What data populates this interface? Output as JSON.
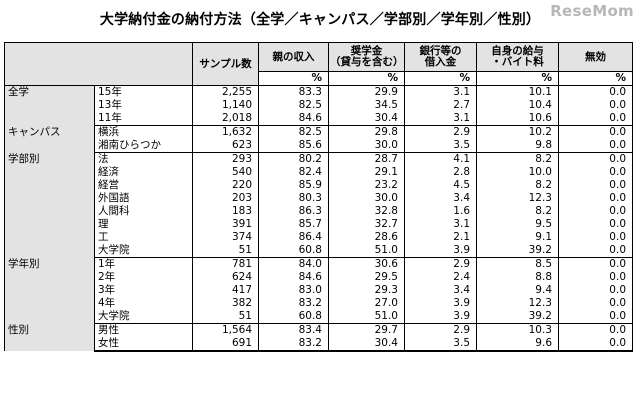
{
  "title": "大学納付金の納付方法（全学／キャンパス／学部別／学年別／性別）",
  "logo": "ReseMom",
  "headers": {
    "sample": "サンプル数",
    "parents": "親の収入",
    "scholarship_l1": "奨学金",
    "scholarship_l2": "（貸与を含む）",
    "bank_l1": "銀行等の",
    "bank_l2": "借入金",
    "own_l1": "自身の給与",
    "own_l2": "・バイト料",
    "none": "無効",
    "unit": "%"
  },
  "groups": [
    {
      "label": "全学",
      "rows": [
        {
          "sub": "15年",
          "n": "2,255",
          "v": [
            "83.3",
            "29.9",
            "3.1",
            "10.1",
            "0.0"
          ]
        },
        {
          "sub": "13年",
          "n": "1,140",
          "v": [
            "82.5",
            "34.5",
            "2.7",
            "10.4",
            "0.0"
          ]
        },
        {
          "sub": "11年",
          "n": "2,018",
          "v": [
            "84.6",
            "30.4",
            "3.1",
            "10.6",
            "0.0"
          ]
        }
      ]
    },
    {
      "label": "キャンパス",
      "rows": [
        {
          "sub": "横浜",
          "n": "1,632",
          "v": [
            "82.5",
            "29.8",
            "2.9",
            "10.2",
            "0.0"
          ]
        },
        {
          "sub": "湘南ひらつか",
          "n": "623",
          "v": [
            "85.6",
            "30.0",
            "3.5",
            "9.8",
            "0.0"
          ]
        }
      ]
    },
    {
      "label": "学部別",
      "rows": [
        {
          "sub": "法",
          "n": "293",
          "v": [
            "80.2",
            "28.7",
            "4.1",
            "8.2",
            "0.0"
          ]
        },
        {
          "sub": "経済",
          "n": "540",
          "v": [
            "82.4",
            "29.1",
            "2.8",
            "10.0",
            "0.0"
          ]
        },
        {
          "sub": "経営",
          "n": "220",
          "v": [
            "85.9",
            "23.2",
            "4.5",
            "8.2",
            "0.0"
          ]
        },
        {
          "sub": "外国語",
          "n": "203",
          "v": [
            "80.3",
            "30.0",
            "3.4",
            "12.3",
            "0.0"
          ]
        },
        {
          "sub": "人間科",
          "n": "183",
          "v": [
            "86.3",
            "32.8",
            "1.6",
            "8.2",
            "0.0"
          ]
        },
        {
          "sub": "理",
          "n": "391",
          "v": [
            "85.7",
            "32.7",
            "3.1",
            "9.5",
            "0.0"
          ]
        },
        {
          "sub": "工",
          "n": "374",
          "v": [
            "86.4",
            "28.6",
            "2.1",
            "9.1",
            "0.0"
          ]
        },
        {
          "sub": "大学院",
          "n": "51",
          "v": [
            "60.8",
            "51.0",
            "3.9",
            "39.2",
            "0.0"
          ]
        }
      ]
    },
    {
      "label": "学年別",
      "rows": [
        {
          "sub": "1年",
          "n": "781",
          "v": [
            "84.0",
            "30.6",
            "2.9",
            "8.5",
            "0.0"
          ]
        },
        {
          "sub": "2年",
          "n": "624",
          "v": [
            "84.6",
            "29.5",
            "2.4",
            "8.8",
            "0.0"
          ]
        },
        {
          "sub": "3年",
          "n": "417",
          "v": [
            "83.0",
            "29.3",
            "3.4",
            "9.4",
            "0.0"
          ]
        },
        {
          "sub": "4年",
          "n": "382",
          "v": [
            "83.2",
            "27.0",
            "3.9",
            "12.3",
            "0.0"
          ]
        },
        {
          "sub": "大学院",
          "n": "51",
          "v": [
            "60.8",
            "51.0",
            "3.9",
            "39.2",
            "0.0"
          ]
        }
      ]
    },
    {
      "label": "性別",
      "rows": [
        {
          "sub": "男性",
          "n": "1,564",
          "v": [
            "83.4",
            "29.7",
            "2.9",
            "10.3",
            "0.0"
          ]
        },
        {
          "sub": "女性",
          "n": "691",
          "v": [
            "83.2",
            "30.4",
            "3.5",
            "9.6",
            "0.0"
          ]
        }
      ]
    }
  ]
}
